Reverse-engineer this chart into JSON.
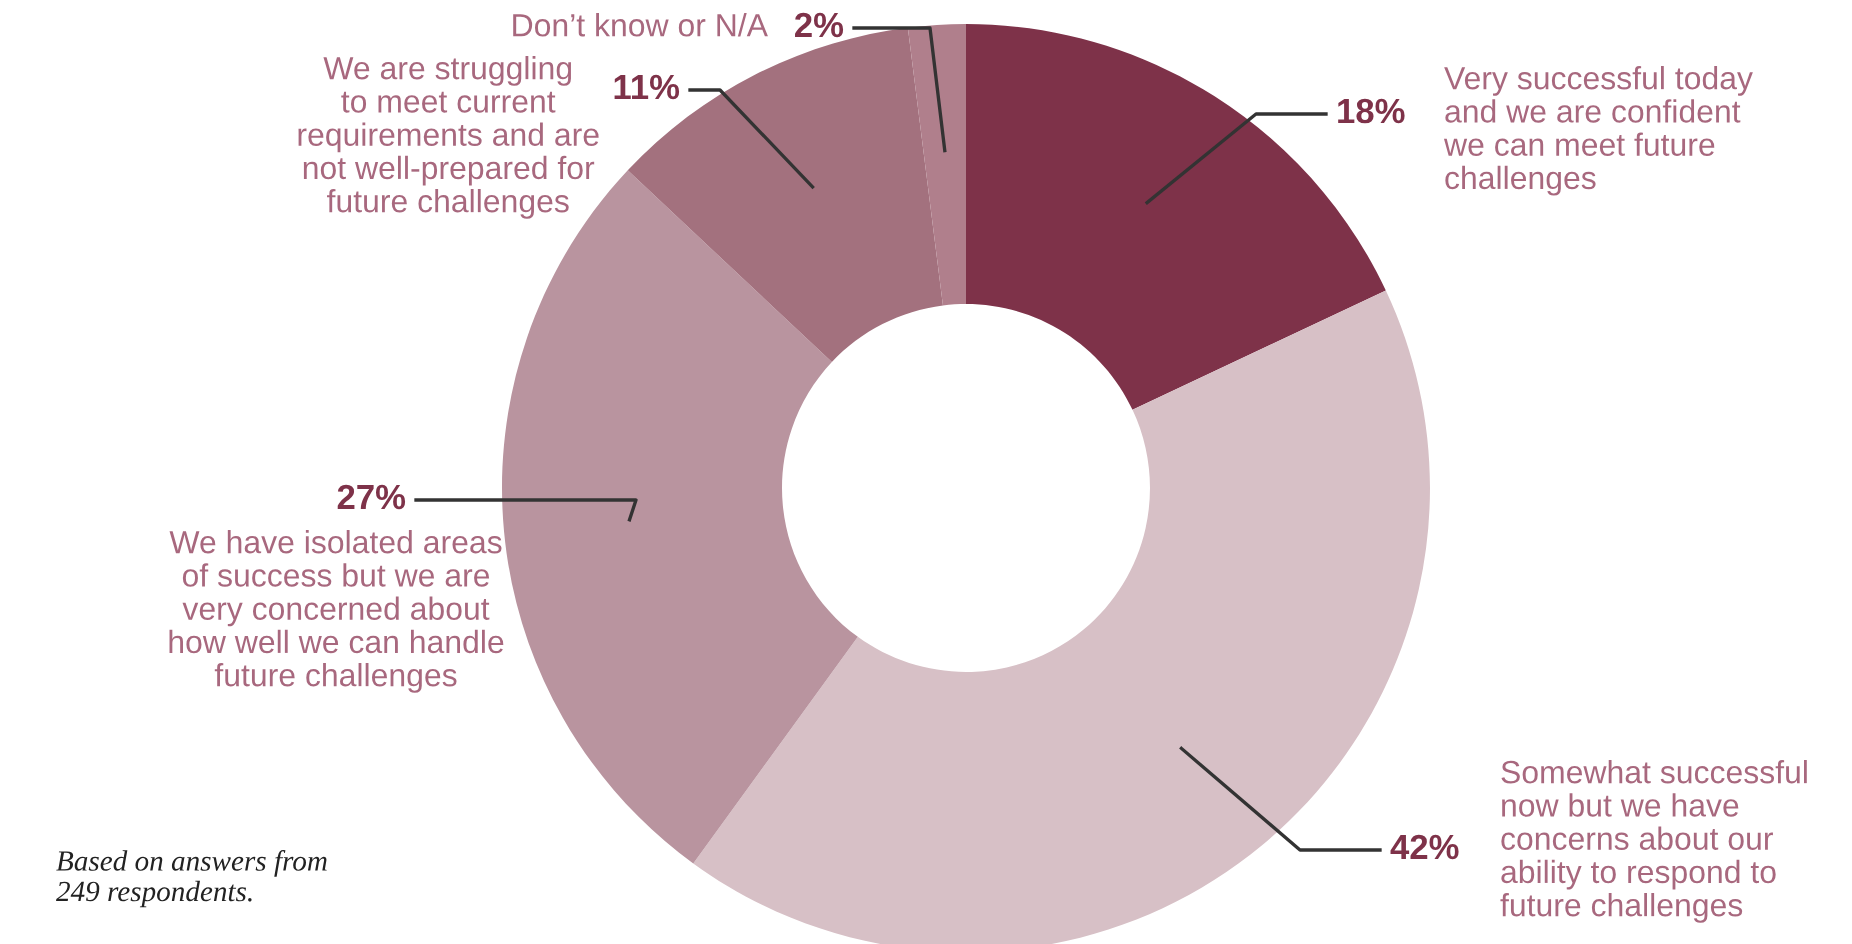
{
  "chart_data": {
    "type": "donut",
    "categories": [
      "Very successful today\nand we are confident\nwe can meet future\nchallenges",
      "Somewhat successful\nnow but we have\nconcerns about our\nability to respond to\nfuture challenges",
      "We have isolated areas\nof success but we are\nvery concerned about\nhow well we can handle\nfuture challenges",
      "We are struggling\nto meet current\nrequirements and are\nnot well-prepared for\nfuture challenges",
      "Don’t know or N/A"
    ],
    "values": [
      18,
      42,
      27,
      11,
      2
    ],
    "colors": [
      "#7e3249",
      "#d7c0c6",
      "#b9949f",
      "#a3717e",
      "#b07f8c"
    ],
    "value_labels": [
      "18%",
      "42%",
      "27%",
      "11%",
      "2%"
    ],
    "annotations": [
      "Based on answers from\n249 respondents."
    ]
  }
}
